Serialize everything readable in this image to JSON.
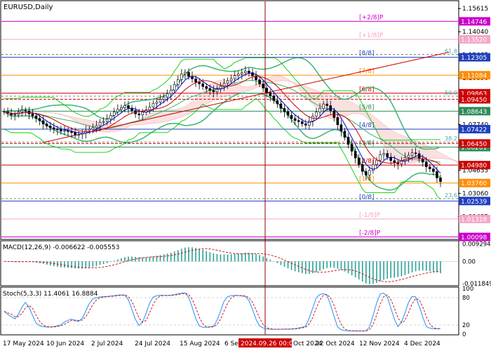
{
  "chart_data": {
    "type": "candlestick",
    "title": "EURUSD,Daily",
    "price_axis": {
      "ylim": [
        0.9998,
        1.161
      ],
      "ticks": [
        "1.15615",
        "1.14040",
        "1.12465",
        "1.10890",
        "1.09315",
        "1.07740",
        "1.06165",
        "1.04635",
        "1.03060",
        "1.01485"
      ],
      "tick_values": [
        1.15615,
        1.1404,
        1.12465,
        1.1089,
        1.09315,
        1.0774,
        1.06165,
        1.04635,
        1.0306,
        1.01485
      ]
    },
    "x_axis": {
      "labels": [
        "17 May 2024",
        "10 Jun 2024",
        "2 Jul 2024",
        "24 Jul 2024",
        "15 Aug 2024",
        "6 Sep",
        "2024.09.26 00:00",
        "Oct 2024",
        "22 Oct 2024",
        "12 Nov 2024",
        "4 Dec 2024"
      ],
      "highlight_label": "2024.09.26 00:00"
    },
    "murrey_levels": [
      {
        "label": "[+2/8]P",
        "value": 1.14746,
        "price_label": "1.14746",
        "color": "#cc00cc"
      },
      {
        "label": "[+1/8]P",
        "value": 1.1352,
        "price_label": "1.13520",
        "color": "#f4a6c8"
      },
      {
        "label": "[8/8]",
        "value": 1.12305,
        "price_label": "1.12305",
        "color": "#1f3fbf"
      },
      {
        "label": "[7/8]",
        "value": 1.11084,
        "price_label": "1.11084",
        "color": "#ff8c00"
      },
      {
        "label": "[6/8]",
        "value": 1.09863,
        "price_label": "1.09863",
        "color": "#cc0000"
      },
      {
        "label": "[5/8]",
        "value": 1.08643,
        "price_label": "1.08643",
        "color": "#2e8b57"
      },
      {
        "label": "[4/8]",
        "value": 1.07422,
        "price_label": "1.07422",
        "color": "#1f3fbf"
      },
      {
        "label": "[3/8]",
        "value": 1.06201,
        "price_label": "1.06201",
        "color": "#2e8b57"
      },
      {
        "label": "[2/8]",
        "value": 1.0498,
        "price_label": "1.04980",
        "color": "#cc0000"
      },
      {
        "label": "[1/8]",
        "value": 1.0376,
        "price_label": "1.03760",
        "color": "#ff8c00"
      },
      {
        "label": "[0/8]",
        "value": 1.02539,
        "price_label": "1.02539",
        "color": "#1f3fbf"
      },
      {
        "label": "[-1/8]P",
        "value": 1.01318,
        "price_label": "1.01318",
        "color": "#f4a6c8"
      },
      {
        "label": "[-2/8]P",
        "value": 1.00098,
        "price_label": "1.00098",
        "color": "#cc00cc"
      }
    ],
    "other_price_labels": [
      {
        "value": 1.0945,
        "price_label": "1.09450",
        "color": "#cc0000"
      },
      {
        "value": 1.0645,
        "price_label": "1.06450",
        "color": "#cc0000"
      }
    ],
    "fibonacci": [
      {
        "label": "61.8",
        "value": 1.125
      },
      {
        "label": "50.0",
        "value": 1.0966
      },
      {
        "label": "38.2",
        "value": 1.0655
      },
      {
        "label": "23.6",
        "value": 1.027
      }
    ],
    "series": [
      {
        "name": "price",
        "closes": [
          1.0861,
          1.085,
          1.0838,
          1.0842,
          1.0858,
          1.087,
          1.0865,
          1.0846,
          1.0832,
          1.0815,
          1.08,
          1.0778,
          1.0764,
          1.0752,
          1.0744,
          1.0738,
          1.0728,
          1.0733,
          1.0726,
          1.0719,
          1.0704,
          1.0706,
          1.0715,
          1.0732,
          1.0741,
          1.0752,
          1.0766,
          1.0789,
          1.0795,
          1.081,
          1.0836,
          1.0859,
          1.0876,
          1.0888,
          1.0902,
          1.0885,
          1.0868,
          1.0846,
          1.0839,
          1.0858,
          1.0873,
          1.0893,
          1.0917,
          1.0926,
          1.0944,
          1.0961,
          1.0983,
          1.1008,
          1.1046,
          1.1079,
          1.1117,
          1.1128,
          1.11,
          1.1084,
          1.1061,
          1.105,
          1.1032,
          1.1018,
          1.1006,
          1.0996,
          1.1018,
          1.1034,
          1.1053,
          1.1071,
          1.1085,
          1.1106,
          1.1116,
          1.1125,
          1.1137,
          1.1126,
          1.1104,
          1.1077,
          1.1049,
          1.1021,
          1.099,
          1.0968,
          1.0936,
          1.0914,
          1.0883,
          1.086,
          1.0837,
          1.0814,
          1.0801,
          1.0793,
          1.0779,
          1.0769,
          1.0797,
          1.0831,
          1.0858,
          1.0884,
          1.0913,
          1.0902,
          1.0866,
          1.0821,
          1.0772,
          1.0729,
          1.0687,
          1.0639,
          1.0592,
          1.0546,
          1.0502,
          1.0455,
          1.043,
          1.0462,
          1.0501,
          1.0531,
          1.0569,
          1.0577,
          1.0553,
          1.0528,
          1.0513,
          1.0506,
          1.0527,
          1.0549,
          1.0565,
          1.0581,
          1.0576,
          1.0541,
          1.0518,
          1.0486,
          1.0472,
          1.0454,
          1.0411,
          1.0386
        ]
      },
      {
        "name": "moving-average-blue",
        "values": []
      },
      {
        "name": "moving-average-red",
        "values": []
      }
    ],
    "macd": {
      "label": "MACD(12,26,9) -0.006622 -0.005553",
      "ticks": [
        "0.009294",
        "0.00",
        "-0.011849"
      ],
      "ylim": [
        -0.0125,
        0.0105
      ]
    },
    "stoch": {
      "label": "Stoch(5,3,3) 11.4061 16.8884",
      "ticks": [
        "100",
        "80",
        "20",
        "0"
      ],
      "ylim": [
        0,
        100
      ]
    },
    "colors": {
      "bollinger": "#3cb371",
      "channel": "#00cc00",
      "trendline": "#cc0000",
      "cloud": "#f4a6a6",
      "ma_blue": "#0000cc",
      "ma_red": "#cc0000",
      "highlight_line": "#8b0000",
      "stoch_main": "#1e90ff",
      "stoch_signal": "#cc0000",
      "macd_hist": "#2aa198"
    }
  }
}
